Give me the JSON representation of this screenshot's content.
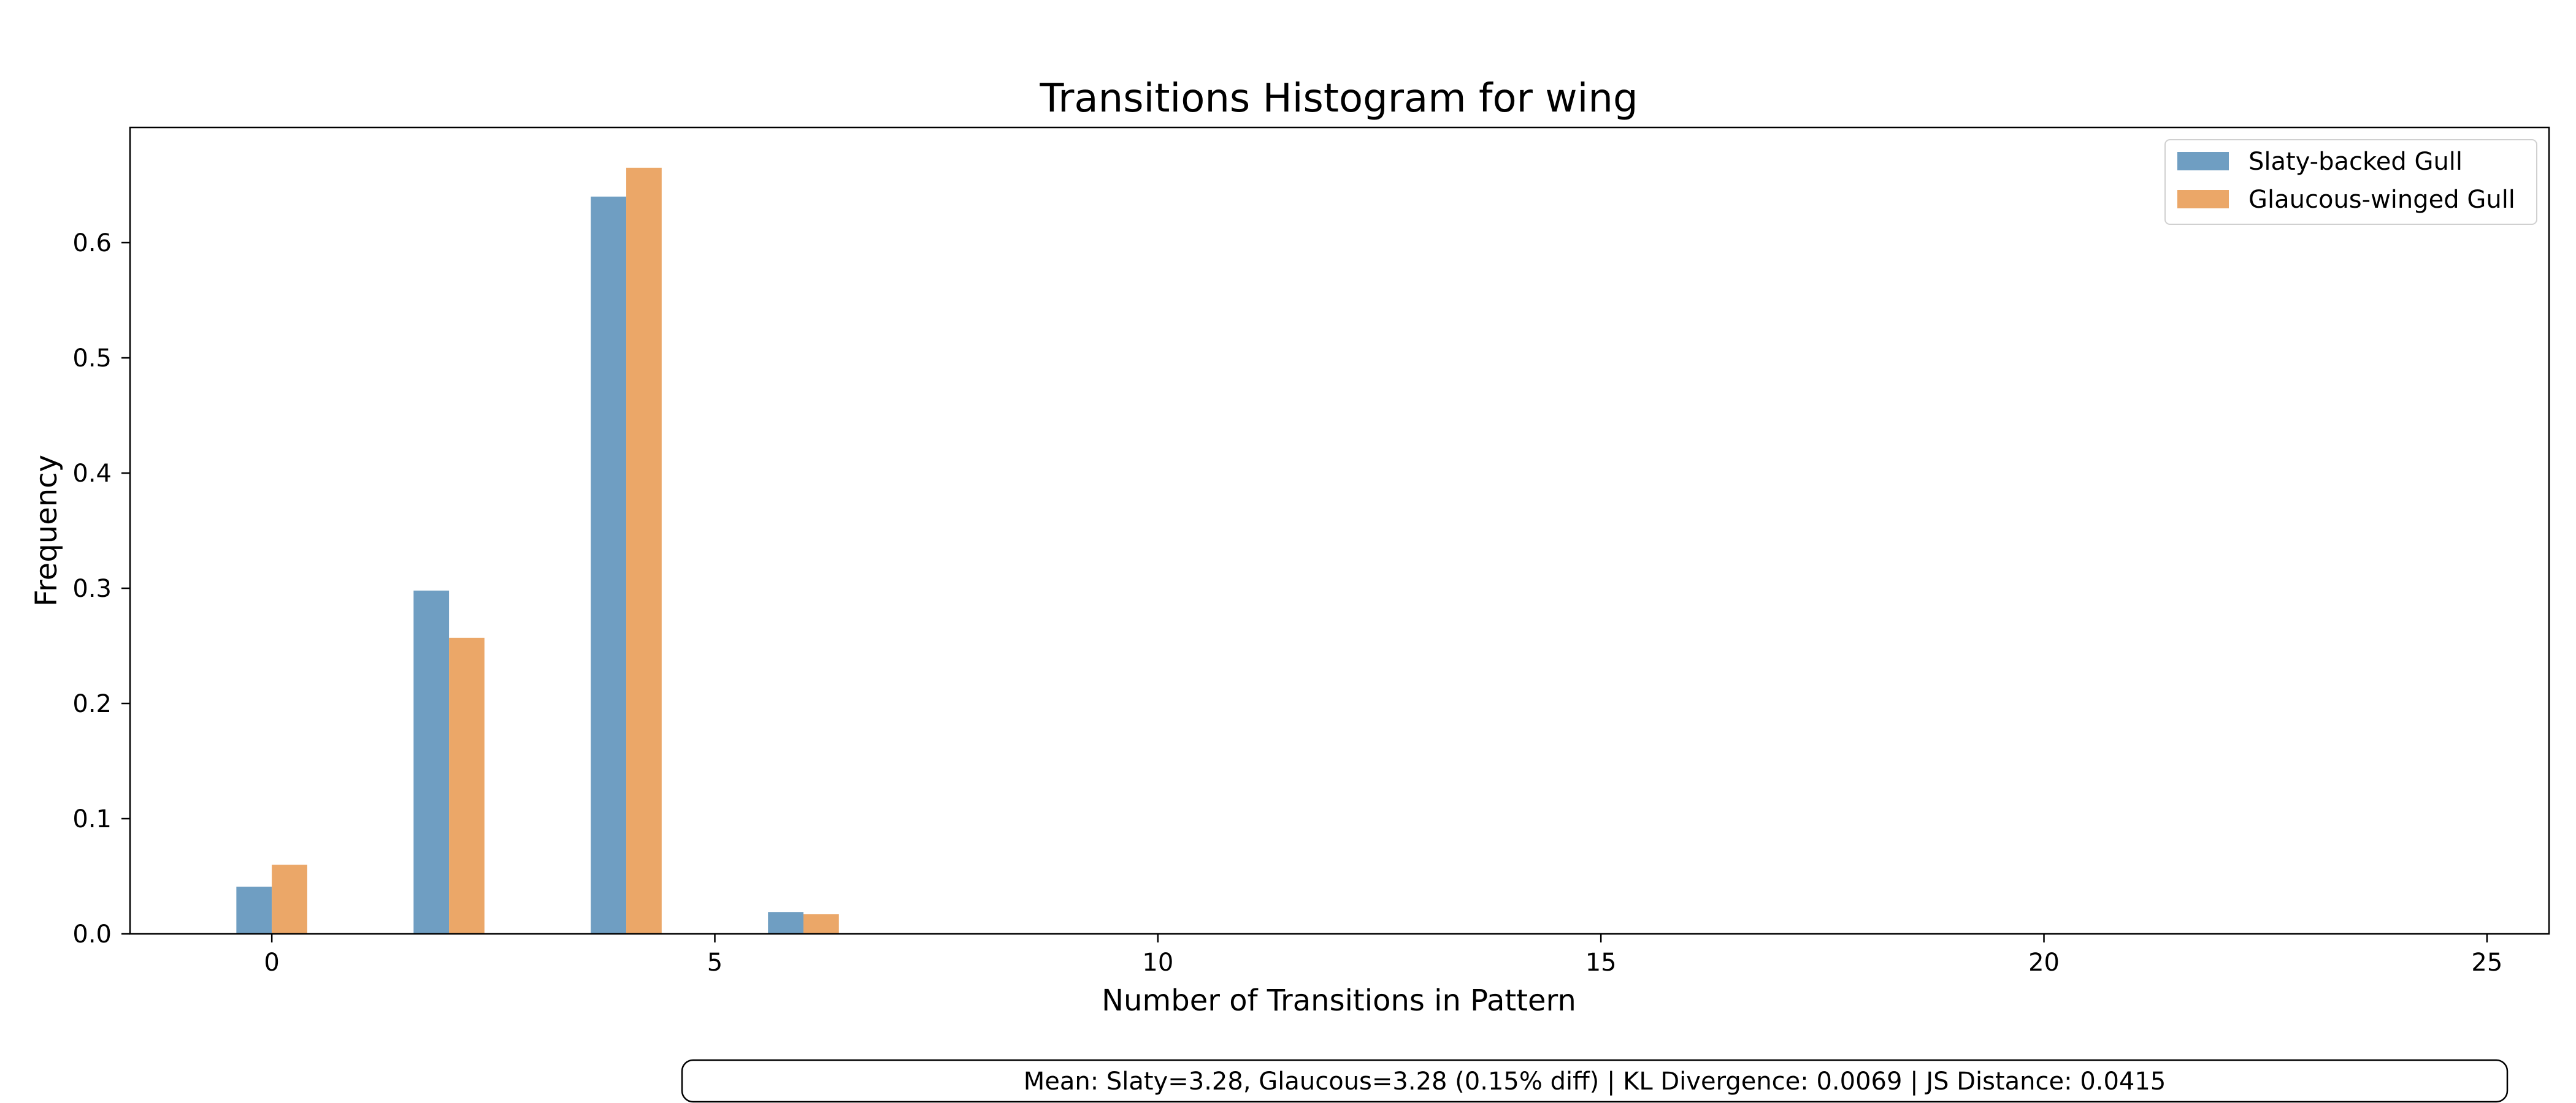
{
  "chart_data": {
    "type": "bar",
    "title": "Transitions Histogram for wing",
    "xlabel": "Number of Transitions in Pattern",
    "ylabel": "Frequency",
    "xlim": [
      -1.6,
      25.7
    ],
    "ylim": [
      0,
      0.7
    ],
    "xticks": [
      0,
      5,
      10,
      15,
      20,
      25
    ],
    "yticks": [
      0.0,
      0.1,
      0.2,
      0.3,
      0.4,
      0.5,
      0.6
    ],
    "x": [
      0,
      2,
      4,
      6
    ],
    "bar_width": 0.4,
    "series": [
      {
        "name": "Slaty-backed Gull",
        "color": "#6f9ec2",
        "values": [
          0.041,
          0.298,
          0.64,
          0.019
        ]
      },
      {
        "name": "Glaucous-winged Gull",
        "color": "#eba768",
        "values": [
          0.06,
          0.257,
          0.665,
          0.017
        ]
      }
    ],
    "legend": "top-right",
    "grid": false
  },
  "stats_text": "Mean: Slaty=3.28, Glaucous=3.28 (0.15% diff) | KL Divergence: 0.0069 | JS Distance: 0.0415"
}
